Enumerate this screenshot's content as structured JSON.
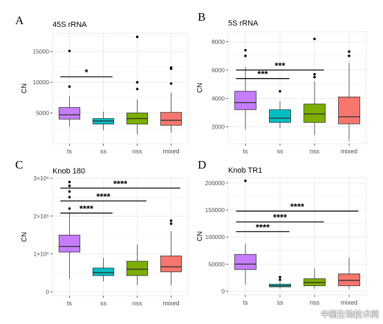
{
  "chart_data": [
    {
      "type": "box",
      "panel_letter": "A",
      "title": "45S rRNA",
      "ylabel": "CN",
      "ylim": [
        0,
        18000
      ],
      "yticks": [
        {
          "v": 5000,
          "label": "5000"
        },
        {
          "v": 10000,
          "label": "10000"
        },
        {
          "v": 15000,
          "label": "15000"
        }
      ],
      "categories": [
        "ts",
        "ss",
        "nss",
        "mixed"
      ],
      "colors": [
        "#c77cff",
        "#00bfc4",
        "#7cae00",
        "#f8766d"
      ],
      "boxes": [
        {
          "min": 2800,
          "q1": 4000,
          "median": 4700,
          "q3": 5900,
          "max": 7800,
          "outliers": [
            9300,
            15100
          ]
        },
        {
          "min": 2200,
          "q1": 3200,
          "median": 3700,
          "q3": 4100,
          "max": 5200,
          "outliers": []
        },
        {
          "min": 1500,
          "q1": 3200,
          "median": 4100,
          "q3": 5000,
          "max": 7200,
          "outliers": [
            8900,
            10000,
            17400
          ]
        },
        {
          "min": 1800,
          "q1": 3000,
          "median": 3800,
          "q3": 5100,
          "max": 8300,
          "outliers": [
            9800,
            12200,
            12400
          ]
        }
      ],
      "significance": [
        {
          "from": "ts",
          "to": "ss",
          "label": "*",
          "y": 10900
        }
      ]
    },
    {
      "type": "box",
      "panel_letter": "B",
      "title": "5S rRNA",
      "ylabel": "CN",
      "ylim": [
        800,
        8700
      ],
      "yticks": [
        {
          "v": 2000,
          "label": "2000"
        },
        {
          "v": 4000,
          "label": "4000"
        },
        {
          "v": 6000,
          "label": "6000"
        },
        {
          "v": 8000,
          "label": "8000"
        }
      ],
      "categories": [
        "ts",
        "ss",
        "nss",
        "mixed"
      ],
      "colors": [
        "#c77cff",
        "#00bfc4",
        "#7cae00",
        "#f8766d"
      ],
      "boxes": [
        {
          "min": 1800,
          "q1": 3200,
          "median": 3700,
          "q3": 4500,
          "max": 6200,
          "outliers": [
            7000,
            7400
          ]
        },
        {
          "min": 1900,
          "q1": 2300,
          "median": 2600,
          "q3": 3200,
          "max": 3800,
          "outliers": [
            4500
          ]
        },
        {
          "min": 1400,
          "q1": 2300,
          "median": 2900,
          "q3": 3600,
          "max": 5200,
          "outliers": [
            5500,
            5700,
            8200
          ]
        },
        {
          "min": 1000,
          "q1": 2200,
          "median": 2700,
          "q3": 4100,
          "max": 6500,
          "outliers": [
            7000,
            7300
          ]
        }
      ],
      "significance": [
        {
          "from": "ts",
          "to": "ss",
          "label": "***",
          "y": 5400
        },
        {
          "from": "ts",
          "to": "nss",
          "label": "***",
          "y": 6000
        }
      ]
    },
    {
      "type": "box",
      "panel_letter": "C",
      "title": "Knob 180",
      "ylabel": "CN",
      "ylim": [
        -100000,
        3000000
      ],
      "yticks": [
        {
          "v": 0,
          "label": "0"
        },
        {
          "v": 1000000,
          "label": "1×10⁶"
        },
        {
          "v": 2000000,
          "label": "2×10⁶"
        },
        {
          "v": 3000000,
          "label": "3×10⁶"
        }
      ],
      "categories": [
        "ts",
        "ss",
        "nss",
        "mixed"
      ],
      "colors": [
        "#c77cff",
        "#00bfc4",
        "#7cae00",
        "#f8766d"
      ],
      "boxes": [
        {
          "min": 350000,
          "q1": 1050000,
          "median": 1200000,
          "q3": 1500000,
          "max": 2100000,
          "outliers": [
            2200000,
            2500000,
            2650000,
            2800000,
            2900000
          ]
        },
        {
          "min": 280000,
          "q1": 430000,
          "median": 510000,
          "q3": 630000,
          "max": 900000,
          "outliers": []
        },
        {
          "min": 180000,
          "q1": 430000,
          "median": 600000,
          "q3": 810000,
          "max": 1250000,
          "outliers": []
        },
        {
          "min": 180000,
          "q1": 530000,
          "median": 660000,
          "q3": 950000,
          "max": 1600000,
          "outliers": [
            1800000,
            1880000
          ]
        }
      ],
      "significance": [
        {
          "from": "ts",
          "to": "ss",
          "label": "****",
          "y": 2080000
        },
        {
          "from": "ts",
          "to": "nss",
          "label": "****",
          "y": 2400000
        },
        {
          "from": "ts",
          "to": "mixed",
          "label": "****",
          "y": 2740000
        }
      ]
    },
    {
      "type": "box",
      "panel_letter": "D",
      "title": "Knob TR1",
      "ylabel": "CN",
      "ylim": [
        -7000,
        210000
      ],
      "yticks": [
        {
          "v": 0,
          "label": "0"
        },
        {
          "v": 50000,
          "label": "50000"
        },
        {
          "v": 100000,
          "label": "100000"
        },
        {
          "v": 150000,
          "label": "150000"
        },
        {
          "v": 200000,
          "label": "200000"
        }
      ],
      "categories": [
        "ts",
        "ss",
        "nss",
        "mixed"
      ],
      "colors": [
        "#c77cff",
        "#00bfc4",
        "#7cae00",
        "#f8766d"
      ],
      "boxes": [
        {
          "min": 12000,
          "q1": 40000,
          "median": 50000,
          "q3": 68000,
          "max": 88000,
          "outliers": [
            204000
          ]
        },
        {
          "min": 5000,
          "q1": 8000,
          "median": 10000,
          "q3": 13000,
          "max": 17000,
          "outliers": [
            21000,
            26000
          ]
        },
        {
          "min": 5000,
          "q1": 10000,
          "median": 16000,
          "q3": 23000,
          "max": 42000,
          "outliers": []
        },
        {
          "min": 4000,
          "q1": 10000,
          "median": 20000,
          "q3": 32000,
          "max": 62000,
          "outliers": []
        }
      ],
      "significance": [
        {
          "from": "ts",
          "to": "ss",
          "label": "****",
          "y": 110000
        },
        {
          "from": "ts",
          "to": "nss",
          "label": "****",
          "y": 128000
        },
        {
          "from": "ts",
          "to": "mixed",
          "label": "****",
          "y": 148000
        }
      ]
    }
  ],
  "watermark": "中国生物技术网"
}
